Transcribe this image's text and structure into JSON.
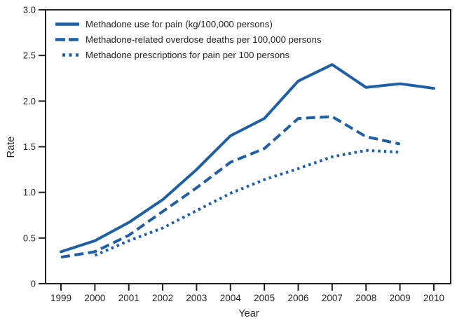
{
  "chart_data": {
    "type": "line",
    "title": "",
    "xlabel": "Year",
    "ylabel": "Rate",
    "ylim": [
      0,
      3.0
    ],
    "yticks": [
      0,
      0.5,
      1.0,
      1.5,
      2.0,
      2.5,
      3.0
    ],
    "ytick_labels": [
      "0",
      "0.5",
      "1.0",
      "1.5",
      "2.0",
      "2.5",
      "3.0"
    ],
    "x": [
      1999,
      2000,
      2001,
      2002,
      2003,
      2004,
      2005,
      2006,
      2007,
      2008,
      2009,
      2010
    ],
    "xtick_labels": [
      "1999",
      "2000",
      "2001",
      "2002",
      "2003",
      "2004",
      "2005",
      "2006",
      "2007",
      "2008",
      "2009",
      "2010"
    ],
    "grid": false,
    "legend_position": "top-left-inside",
    "axis_color": "#231F20",
    "series": [
      {
        "name": "Methadone use for pain (kg/100,000 persons)",
        "style": "solid",
        "color": "#1F5FA6",
        "start_year": 1999,
        "values": [
          0.35,
          0.47,
          0.67,
          0.92,
          1.25,
          1.62,
          1.81,
          2.22,
          2.4,
          2.15,
          2.19,
          2.14
        ]
      },
      {
        "name": "Methadone-related overdose deaths per 100,000 persons",
        "style": "dashed",
        "color": "#1F5FA6",
        "start_year": 1999,
        "values": [
          0.29,
          0.35,
          0.53,
          0.79,
          1.05,
          1.33,
          1.48,
          1.81,
          1.83,
          1.61,
          1.53
        ]
      },
      {
        "name": "Methadone prescriptions for pain per 100 persons",
        "style": "dotted",
        "color": "#1F5FA6",
        "start_year": 2000,
        "values": [
          0.31,
          0.47,
          0.61,
          0.8,
          0.99,
          1.14,
          1.26,
          1.39,
          1.46,
          1.44
        ]
      }
    ]
  }
}
